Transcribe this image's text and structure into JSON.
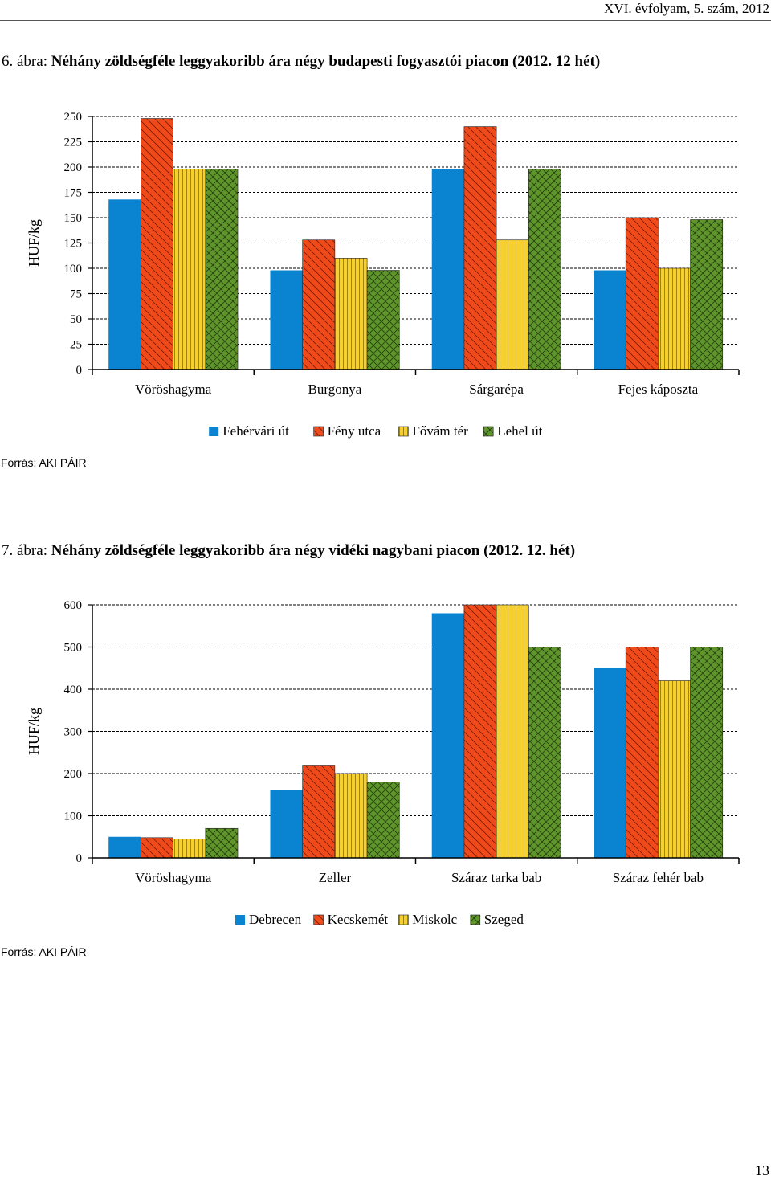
{
  "header": {
    "text": "XVI. évfolyam, 5. szám, 2012"
  },
  "page_number": "13",
  "colors": {
    "blue": "#0a84d0",
    "red": "#f04a1a",
    "yellow": "#f6d02e",
    "green": "#5e962b"
  },
  "figures": [
    {
      "prefix": "6. ábra: ",
      "title": "Néhány zöldségféle leggyakoribb ára négy budapesti fogyasztói piacon (2012. 12 hét)",
      "source": "Forrás: AKI PÁIR"
    },
    {
      "prefix": "7. ábra: ",
      "title": "Néhány zöldségféle leggyakoribb ára négy vidéki nagybani piacon (2012. 12. hét)",
      "source": "Forrás: AKI PÁIR"
    }
  ],
  "chart_data": [
    {
      "type": "bar",
      "ylabel": "HUF/kg",
      "ylim": [
        0,
        250
      ],
      "yticks": [
        0,
        25,
        50,
        75,
        100,
        125,
        150,
        175,
        200,
        225,
        250
      ],
      "grid": true,
      "legend_position": "bottom",
      "categories": [
        "Vöröshagyma",
        "Burgonya",
        "Sárgarépa",
        "Fejes káposzta"
      ],
      "series": [
        {
          "name": "Fehérvári út",
          "values": [
            168,
            98,
            198,
            98
          ]
        },
        {
          "name": "Fény utca",
          "values": [
            248,
            128,
            240,
            150
          ]
        },
        {
          "name": "Fővám tér",
          "values": [
            198,
            110,
            128,
            100
          ]
        },
        {
          "name": "Lehel út",
          "values": [
            198,
            98,
            198,
            148
          ]
        }
      ]
    },
    {
      "type": "bar",
      "ylabel": "HUF/kg",
      "ylim": [
        0,
        600
      ],
      "yticks": [
        0,
        100,
        200,
        300,
        400,
        500,
        600
      ],
      "grid": true,
      "legend_position": "bottom",
      "categories": [
        "Vöröshagyma",
        "Zeller",
        "Száraz tarka bab",
        "Száraz fehér bab"
      ],
      "series": [
        {
          "name": "Debrecen",
          "values": [
            50,
            160,
            580,
            450
          ]
        },
        {
          "name": "Kecskemét",
          "values": [
            48,
            220,
            600,
            500
          ]
        },
        {
          "name": "Miskolc",
          "values": [
            45,
            200,
            600,
            420
          ]
        },
        {
          "name": "Szeged",
          "values": [
            70,
            180,
            500,
            500
          ]
        }
      ]
    }
  ]
}
